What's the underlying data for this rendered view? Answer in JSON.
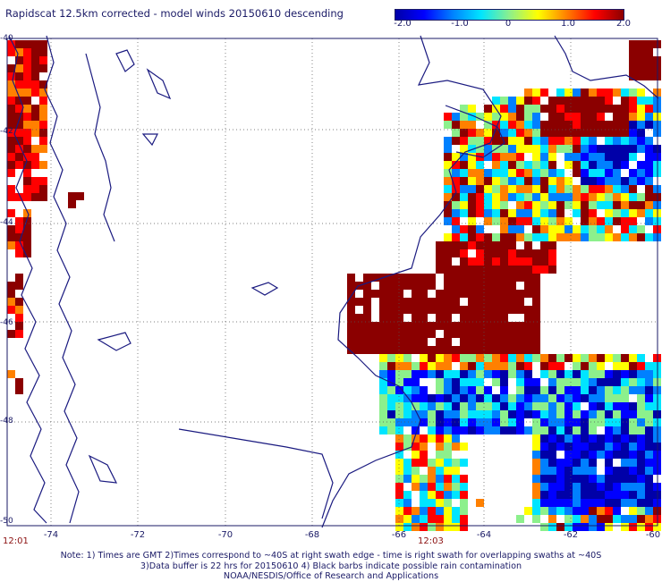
{
  "title": "Rapidscat 12.5km corrected - model winds 20150610 descending",
  "colorbar": {
    "labels": [
      "-2.0",
      "-1.0",
      "0",
      "1.0",
      "2.0"
    ],
    "stops": [
      "#0000a8",
      "#0000ff",
      "#0080ff",
      "#00e5ff",
      "#8cf08c",
      "#ffff00",
      "#ff8000",
      "#ff0000",
      "#8b0000"
    ]
  },
  "axes": {
    "x_ticks": [
      "-74",
      "-72",
      "-70",
      "-68",
      "-66",
      "-64",
      "-62",
      "-60"
    ],
    "y_ticks": [
      "-40",
      "-42",
      "-44",
      "-46",
      "-48",
      "-50"
    ],
    "xlim": [
      -75,
      -60
    ],
    "ylim": [
      -50,
      -40
    ],
    "grid": "dotted"
  },
  "times": {
    "left": "12:01",
    "mid": "12:03"
  },
  "notes": [
    "Note: 1) Times are GMT 2)Times correspond to ~40S at right swath edge - time is right swath for overlapping swaths at ~40S",
    "3)Data buffer is 22 hrs for 20150610 4) Black barbs indicate possible rain contamination",
    "NOAA/NESDIS/Office of Research and Applications"
  ],
  "colors": {
    "land_outline": "#1a1a80",
    "grid": "#555555",
    "text": "#1a1a66",
    "time_text": "#8b1010"
  }
}
